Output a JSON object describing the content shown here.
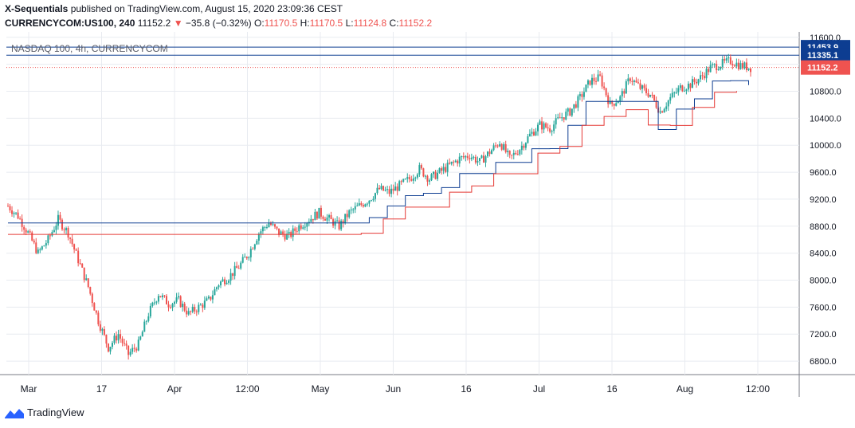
{
  "header": {
    "author": "X-Sequentials",
    "published": "published on TradingView.com, August 15, 2020 23:09:36 CEST",
    "symbol": "CURRENCYCOM:US100, 240",
    "last": "11152.2",
    "change_arrow": "▼",
    "change": "−35.8 (−0.32%)",
    "o_label": "O:",
    "o_val": "11170.5",
    "h_label": "H:",
    "h_val": "11170.5",
    "l_label": "L:",
    "l_val": "11124.8",
    "c_label": "C:",
    "c_val": "11152.2"
  },
  "watermark": "NASDAQ 100, 4h, CURRENCYCOM",
  "footer": {
    "brand": "TradingView"
  },
  "colors": {
    "up": "#26a69a",
    "down": "#ef5350",
    "blue": "#0d3d91",
    "red": "#e53935",
    "grid": "#e8ebf0",
    "axis": "#131722"
  },
  "chart_data": {
    "type": "candlestick",
    "y_ticks": [
      "11600.0",
      "11200.0",
      "10800.0",
      "10400.0",
      "10000.0",
      "9600.0",
      "9200.0",
      "8800.0",
      "8400.0",
      "8000.0",
      "7600.0",
      "7200.0",
      "6800.0"
    ],
    "y_tick_values": [
      11600,
      11200,
      10800,
      10400,
      10000,
      9600,
      9200,
      8800,
      8400,
      8000,
      7600,
      7200,
      6800
    ],
    "ylim": [
      6600,
      11680
    ],
    "x_ticks": [
      "Mar",
      "17",
      "Apr",
      "12:00",
      "May",
      "Jun",
      "16",
      "Jul",
      "16",
      "Aug",
      "12:00"
    ],
    "price_labels": [
      {
        "text": "11453.9",
        "value": 11453.9,
        "color": "#0d3d91"
      },
      {
        "text": "11335.1",
        "value": 11335.1,
        "color": "#0d3d91"
      },
      {
        "text": "11152.2",
        "value": 11152.2,
        "color": "#ef5350"
      }
    ],
    "horizontal_lines": [
      11453.9,
      11335.1
    ],
    "last_price": 11152.2,
    "closes": [
      9100,
      8950,
      8700,
      8400,
      8600,
      8900,
      8700,
      8300,
      7900,
      7400,
      7000,
      7200,
      6900,
      7050,
      7500,
      7800,
      7650,
      7700,
      7500,
      7600,
      7700,
      7950,
      8050,
      8200,
      8400,
      8700,
      8850,
      8700,
      8650,
      8800,
      8900,
      9000,
      8900,
      8800,
      9000,
      9100,
      9200,
      9350,
      9300,
      9400,
      9500,
      9650,
      9500,
      9600,
      9700,
      9800,
      9850,
      9750,
      9900,
      10050,
      9800,
      9950,
      10150,
      10300,
      10250,
      10400,
      10500,
      10700,
      10950,
      11000,
      10600,
      10700,
      11000,
      10850,
      10750,
      10500,
      10700,
      10850,
      10900,
      11000,
      11150,
      11200,
      11250,
      11180,
      11150
    ]
  }
}
